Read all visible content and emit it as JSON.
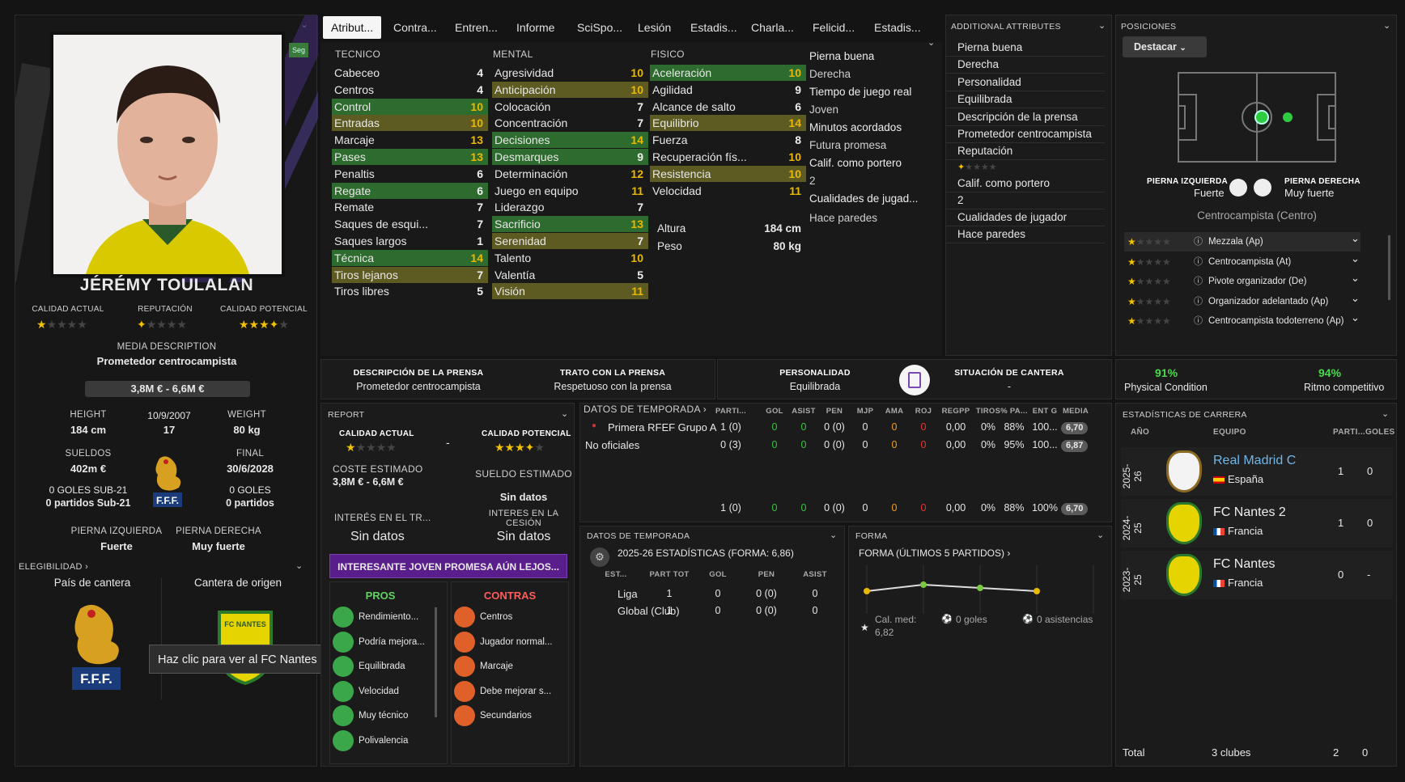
{
  "tabs": [
    "Atribut...",
    "Contra...",
    "Entren...",
    "Informe",
    "SciSpo...",
    "Lesión",
    "Estadis...",
    "Charla...",
    "Felicid...",
    "Estadis..."
  ],
  "player": {
    "name": "JÉRÉMY TOULALAN",
    "seg_badge": "Seg",
    "ca_label": "CALIDAD ACTUAL",
    "rep_label": "REPUTACIÓN",
    "pa_label": "CALIDAD POTENCIAL",
    "media_desc_label": "MEDIA DESCRIPTION",
    "media_desc": "Prometedor centrocampista",
    "value": "3,8M € - 6,6M €",
    "height_label": "HEIGHT",
    "height": "184 cm",
    "dob": "10/9/2007",
    "age": "17",
    "weight_label": "WEIGHT",
    "weight": "80 kg",
    "wages_label": "SUELDOS",
    "wages": "402m €",
    "contract_label": "FINAL",
    "contract": "30/6/2028",
    "u21_goals": "0 GOLES SUB-21",
    "u21_apps": "0 partidos Sub-21",
    "goals": "0 GOLES",
    "apps": "0 partidos",
    "left_foot_label": "PIERNA IZQUIERDA",
    "left_foot": "Fuerte",
    "right_foot_label": "PIERNA DERECHA",
    "right_foot": "Muy fuerte",
    "eligibility": "ELEGIBILIDAD",
    "nation_label": "País de cantera",
    "origin_label": "Cantera de origen",
    "tooltip": "Haz clic para ver al FC Nantes",
    "fff": "F.F.F.",
    "club_crest": "FC NANTES"
  },
  "attributes": {
    "tecnico_label": "TECNICO",
    "mental_label": "MENTAL",
    "fisico_label": "FISICO",
    "tecnico": [
      {
        "n": "Cabeceo",
        "v": "4"
      },
      {
        "n": "Centros",
        "v": "4"
      },
      {
        "n": "Control",
        "v": "10"
      },
      {
        "n": "Entradas",
        "v": "10"
      },
      {
        "n": "Marcaje",
        "v": "13"
      },
      {
        "n": "Pases",
        "v": "13"
      },
      {
        "n": "Penaltis",
        "v": "6"
      },
      {
        "n": "Regate",
        "v": "6"
      },
      {
        "n": "Remate",
        "v": "7"
      },
      {
        "n": "Saques de esqui...",
        "v": "7"
      },
      {
        "n": "Saques largos",
        "v": "1"
      },
      {
        "n": "Técnica",
        "v": "14"
      },
      {
        "n": "Tiros lejanos",
        "v": "7"
      },
      {
        "n": "Tiros libres",
        "v": "5"
      }
    ],
    "mental": [
      {
        "n": "Agresividad",
        "v": "10"
      },
      {
        "n": "Anticipación",
        "v": "10"
      },
      {
        "n": "Colocación",
        "v": "7"
      },
      {
        "n": "Concentración",
        "v": "7"
      },
      {
        "n": "Decisiones",
        "v": "14"
      },
      {
        "n": "Desmarques",
        "v": "9"
      },
      {
        "n": "Determinación",
        "v": "12"
      },
      {
        "n": "Juego en equipo",
        "v": "11"
      },
      {
        "n": "Liderazgo",
        "v": "7"
      },
      {
        "n": "Sacrificio",
        "v": "13"
      },
      {
        "n": "Serenidad",
        "v": "7"
      },
      {
        "n": "Talento",
        "v": "10"
      },
      {
        "n": "Valentía",
        "v": "5"
      },
      {
        "n": "Visión",
        "v": "11"
      }
    ],
    "fisico": [
      {
        "n": "Aceleración",
        "v": "10"
      },
      {
        "n": "Agilidad",
        "v": "9"
      },
      {
        "n": "Alcance de salto",
        "v": "6"
      },
      {
        "n": "Equilibrio",
        "v": "14"
      },
      {
        "n": "Fuerza",
        "v": "8"
      },
      {
        "n": "Recuperación fís...",
        "v": "10"
      },
      {
        "n": "Resistencia",
        "v": "10"
      },
      {
        "n": "Velocidad",
        "v": "11"
      }
    ],
    "altura_label": "Altura",
    "altura": "184 cm",
    "peso_label": "Peso",
    "peso": "80 kg"
  },
  "side_list": [
    "Pierna buena",
    "Derecha",
    "Tiempo de juego real",
    "Joven",
    "Minutos acordados",
    "Futura promesa",
    "Calif. como portero",
    "2",
    "Cualidades de jugad...",
    "Hace paredes"
  ],
  "additional": {
    "title": "ADDITIONAL ATTRIBUTES",
    "items": [
      "Pierna buena",
      "Derecha",
      "Personalidad",
      "Equilibrada",
      "Descripción de la prensa",
      "Prometedor centrocampista",
      "Reputación",
      "",
      "Calif. como portero",
      "2",
      "Cualidades de jugador",
      "Hace paredes"
    ]
  },
  "positions": {
    "title": "POSICIONES",
    "button": "Destacar",
    "left_label": "PIERNA IZQUIERDA",
    "left_val": "Fuerte",
    "right_label": "PIERNA DERECHA",
    "right_val": "Muy fuerte",
    "position": "Centrocampista (Centro)",
    "roles": [
      "Mezzala (Ap)",
      "Centrocampista (At)",
      "Pivote organizador (De)",
      "Organizador adelantado (Ap)",
      "Centrocampista todoterreno (Ap)"
    ]
  },
  "info_bar": {
    "press_label": "DESCRIPCIÓN DE LA PRENSA",
    "press": "Prometedor centrocampista",
    "handling_label": "TRATO CON LA PRENSA",
    "handling": "Respetuoso con la prensa",
    "pers_label": "PERSONALIDAD",
    "pers": "Equilibrada",
    "youth_label": "SITUACIÓN DE CANTERA",
    "youth": "-"
  },
  "condition": {
    "phys": "91%",
    "phys_label": "Physical Condition",
    "match": "94%",
    "match_label": "Ritmo competitivo"
  },
  "report": {
    "title": "REPORT",
    "ca_label": "CALIDAD ACTUAL",
    "pa_label": "CALIDAD POTENCIAL",
    "dash": "-",
    "cost_label": "COSTE ESTIMADO",
    "cost": "3,8M € - 6,6M €",
    "wage_label": "SUELDO ESTIMADO",
    "wage": "Sin datos",
    "transfer_label": "INTERÉS EN EL TR...",
    "transfer": "Sin datos",
    "loan_label": "INTERES EN LA CESIÓN",
    "loan": "Sin datos",
    "banner": "INTERESANTE JOVEN PROMESA AÚN LEJOS...",
    "pros_label": "PROS",
    "cons_label": "CONTRAS",
    "pros": [
      "Rendimiento...",
      "Podría mejora...",
      "Equilibrada",
      "Velocidad",
      "Muy técnico",
      "Polivalencia"
    ],
    "cons": [
      "Centros",
      "Jugador normal...",
      "Marcaje",
      "Debe mejorar s...",
      "Secundarios"
    ]
  },
  "season": {
    "title": "DATOS DE TEMPORADA",
    "cols": [
      "PARTI...",
      "GOL",
      "ASIST",
      "PEN",
      "MJP",
      "AMA",
      "ROJ",
      "REGPP",
      "TIROS",
      "% PA...",
      "ENT G",
      "MEDIA"
    ],
    "rows": [
      {
        "comp": "Primera RFEF Grupo A",
        "vals": [
          "1 (0)",
          "0",
          "0",
          "0 (0)",
          "0",
          "0",
          "0",
          "0,00",
          "0%",
          "88%",
          "100..."
        ],
        "rating": "6,70"
      },
      {
        "comp": "No oficiales",
        "vals": [
          "0 (3)",
          "0",
          "0",
          "0 (0)",
          "0",
          "0",
          "0",
          "0,00",
          "0%",
          "95%",
          "100..."
        ],
        "rating": "6,87"
      }
    ],
    "total": [
      "1 (0)",
      "0",
      "0",
      "0 (0)",
      "0",
      "0",
      "0",
      "0,00",
      "0%",
      "88%",
      "100%"
    ],
    "total_rating": "6,70"
  },
  "season2": {
    "title": "DATOS DE TEMPORADA",
    "subtitle": "2025-26 ESTADÍSTICAS (FORMA: 6,86)",
    "cols": [
      "EST...",
      "PART TOT",
      "GOL",
      "PEN",
      "ASIST"
    ],
    "rows": [
      {
        "n": "Liga",
        "v": [
          "1",
          "0",
          "0 (0)",
          "0"
        ]
      },
      {
        "n": "Global (Club)",
        "v": [
          "1",
          "0",
          "0 (0)",
          "0"
        ]
      }
    ]
  },
  "form": {
    "title": "FORMA",
    "subtitle": "FORMA (ÚLTIMOS 5 PARTIDOS)",
    "avg_label": "Cal. med:",
    "avg": "6,82",
    "goals": "0 goles",
    "assists": "0 asistencias",
    "points": [
      6.7,
      6.9,
      6.8,
      6.7
    ]
  },
  "career": {
    "title": "ESTADÍSTICAS DE CARRERA",
    "cols": [
      "AÑO",
      "EQUIPO",
      "PARTI...",
      "GOLES"
    ],
    "rows": [
      {
        "year": "2025-26",
        "team": "Real Madrid C",
        "country": "España",
        "apps": "1",
        "goals": "0"
      },
      {
        "year": "2024-25",
        "team": "FC Nantes 2",
        "country": "Francia",
        "apps": "1",
        "goals": "0"
      },
      {
        "year": "2023-25",
        "team": "FC Nantes",
        "country": "Francia",
        "apps": "0",
        "goals": "-"
      }
    ],
    "total_label": "Total",
    "total_clubs": "3 clubes",
    "total_apps": "2",
    "total_goals": "0"
  },
  "colors": {
    "green": "#2e6b2e",
    "olive": "#5d5a22",
    "yellow": "#e9b800",
    "purple": "#5a1e8c"
  }
}
